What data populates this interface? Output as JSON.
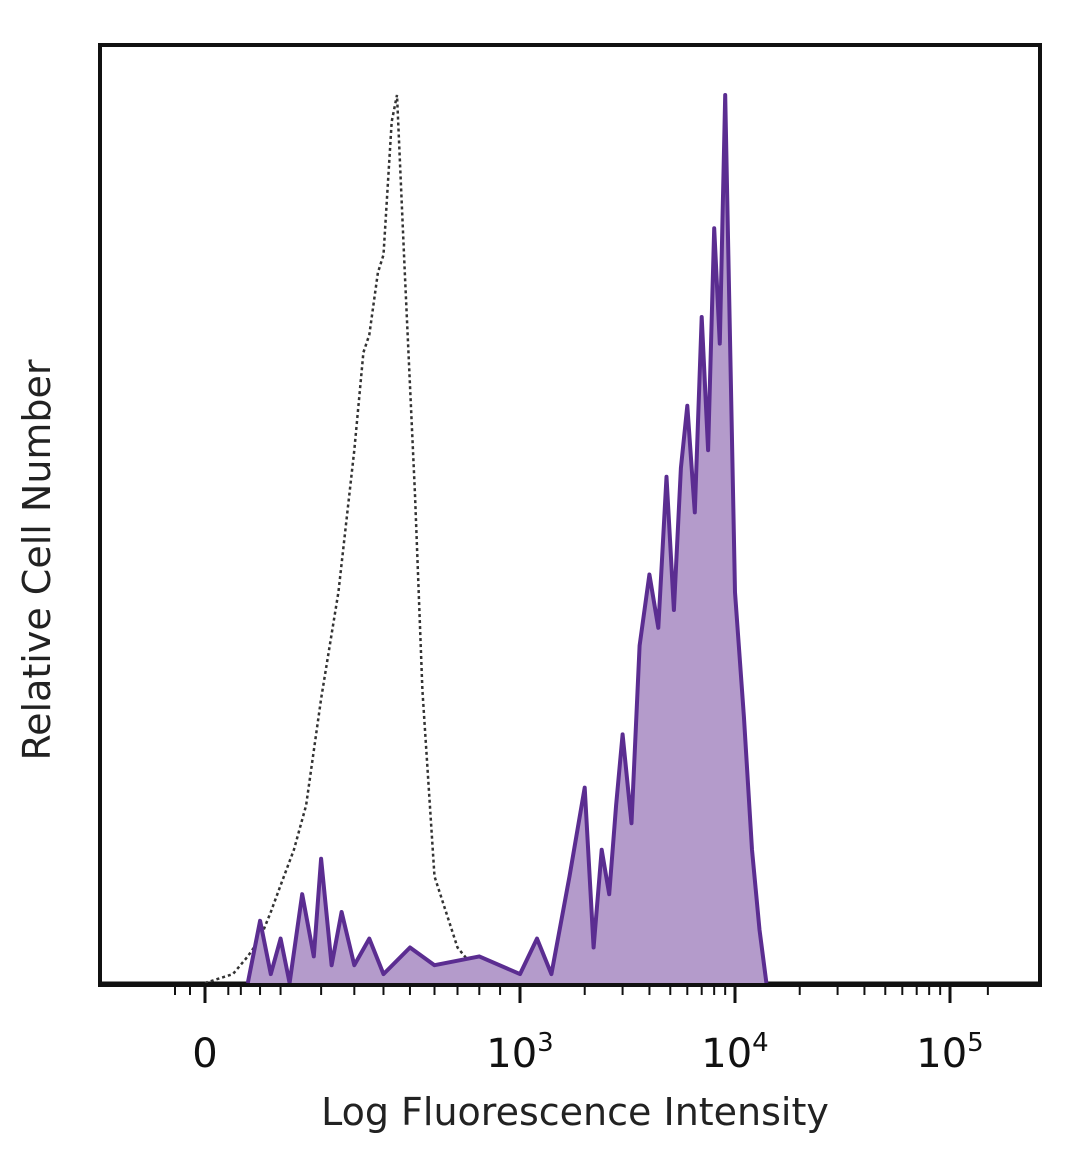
{
  "chart_data": {
    "type": "area",
    "title": "",
    "xlabel": "Log Fluorescence Intensity",
    "ylabel": "Relative Cell Number",
    "x_scale": "biexponential",
    "xlim": [
      -50,
      200000
    ],
    "ylim": [
      0,
      100
    ],
    "grid": false,
    "legend": "none",
    "x_ticks": [
      {
        "value": 0,
        "base": "0",
        "exp": ""
      },
      {
        "value": 1000,
        "base": "10",
        "exp": "3"
      },
      {
        "value": 10000,
        "base": "10",
        "exp": "4"
      },
      {
        "value": 100000,
        "base": "10",
        "exp": "5"
      }
    ],
    "series": [
      {
        "style": "dotted-outline",
        "color": "#333333",
        "x": [
          0,
          20,
          40,
          60,
          80,
          100,
          130,
          160,
          200,
          250,
          300,
          330,
          350,
          380,
          400,
          430,
          450,
          480,
          520,
          550,
          600,
          700,
          800,
          1000
        ],
        "y": [
          0,
          1,
          3,
          5,
          8,
          11,
          15,
          20,
          32,
          44,
          60,
          71,
          73,
          80,
          82,
          97,
          100,
          80,
          55,
          33,
          12,
          4,
          1,
          0
        ]
      },
      {
        "style": "filled",
        "color": "#5b2d91",
        "fill": "#b49bcb",
        "x": [
          40,
          60,
          80,
          100,
          120,
          150,
          180,
          200,
          230,
          260,
          300,
          350,
          400,
          500,
          600,
          800,
          1000,
          1200,
          1400,
          1700,
          2000,
          2200,
          2400,
          2600,
          2800,
          3000,
          3300,
          3600,
          4000,
          4400,
          4800,
          5200,
          5600,
          6000,
          6500,
          7000,
          7500,
          8000,
          8500,
          9000,
          10000,
          11000,
          12000,
          13000,
          14000
        ],
        "y": [
          0,
          7,
          1,
          5,
          0,
          10,
          3,
          14,
          2,
          8,
          2,
          5,
          1,
          4,
          2,
          3,
          1,
          5,
          1,
          12,
          22,
          4,
          15,
          10,
          20,
          28,
          18,
          38,
          46,
          40,
          57,
          42,
          58,
          65,
          53,
          75,
          60,
          85,
          72,
          100,
          44,
          30,
          15,
          6,
          0
        ]
      }
    ]
  }
}
